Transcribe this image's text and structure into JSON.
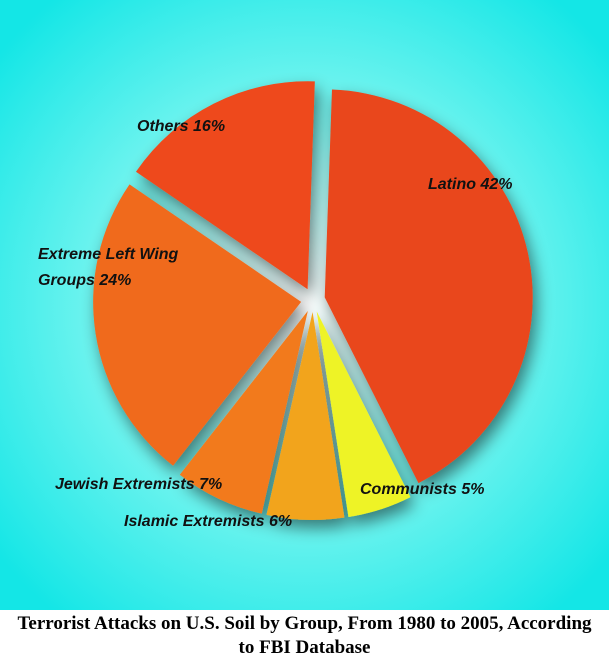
{
  "chart_data": {
    "type": "pie",
    "title": "Terrorist Attacks on U.S. Soil by Group, From 1980 to 2005, According to FBI Database",
    "categories": [
      "Latino",
      "Communists",
      "Islamic Extremists",
      "Jewish Extremists",
      "Extreme Left Wing Groups",
      "Others"
    ],
    "values": [
      42,
      5,
      6,
      7,
      24,
      16
    ],
    "value_labels": [
      "42%",
      "5%",
      "6%",
      "7%",
      "24%",
      "16%"
    ],
    "colors": [
      "#e9461c",
      "#eef326",
      "#f2a41c",
      "#f27a1a",
      "#f06a1a",
      "#ee4a1a"
    ]
  }
}
